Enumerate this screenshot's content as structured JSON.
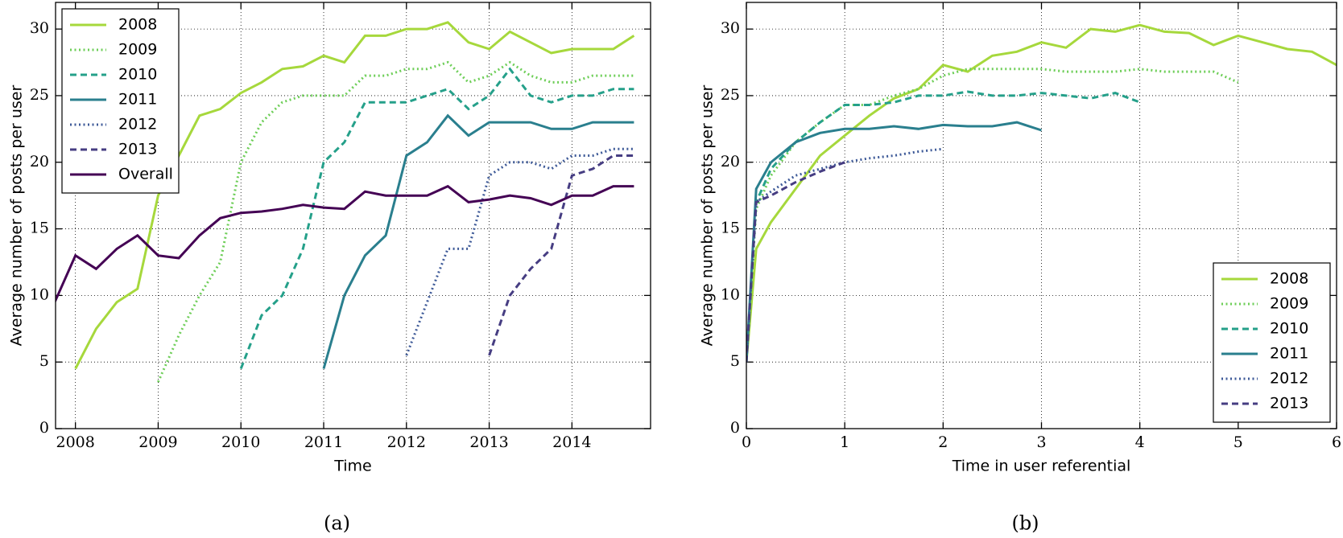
{
  "chart_data": [
    {
      "type": "line",
      "caption": "(a)",
      "x_label": "Time",
      "y_label": "Average number of posts per user",
      "x": [
        2007.75,
        2008.0,
        2008.25,
        2008.5,
        2008.75,
        2009.0,
        2009.25,
        2009.5,
        2009.75,
        2010.0,
        2010.25,
        2010.5,
        2010.75,
        2011.0,
        2011.25,
        2011.5,
        2011.75,
        2012.0,
        2012.25,
        2012.5,
        2012.75,
        2013.0,
        2013.25,
        2013.5,
        2013.75,
        2014.0,
        2014.25,
        2014.5,
        2014.75
      ],
      "series": [
        {
          "name": "2008",
          "color": "#a6d83c",
          "dash": "solid",
          "values": [
            null,
            4.5,
            7.5,
            9.5,
            10.5,
            17.5,
            20.5,
            23.5,
            24,
            25.2,
            26,
            27,
            27.2,
            28,
            27.5,
            29.5,
            29.5,
            30,
            30,
            30.5,
            29,
            28.5,
            29.8,
            29,
            28.2,
            28.5,
            28.5,
            28.5,
            29.5
          ]
        },
        {
          "name": "2009",
          "color": "#6ece58",
          "dash": "dotted",
          "values": [
            null,
            null,
            null,
            null,
            null,
            3.5,
            7,
            10,
            12.5,
            20,
            23,
            24.5,
            25,
            25,
            25,
            26.5,
            26.5,
            27,
            27,
            27.5,
            26,
            26.5,
            27.5,
            26.5,
            26,
            26,
            26.5,
            26.5,
            26.5
          ]
        },
        {
          "name": "2010",
          "color": "#25a08a",
          "dash": "dashed",
          "values": [
            null,
            null,
            null,
            null,
            null,
            null,
            null,
            null,
            null,
            4.5,
            8.5,
            10,
            13.5,
            20,
            21.5,
            24.5,
            24.5,
            24.5,
            25,
            25.5,
            24,
            25,
            27,
            25,
            24.5,
            25,
            25,
            25.5,
            25.5
          ]
        },
        {
          "name": "2011",
          "color": "#2a7f8e",
          "dash": "solid",
          "values": [
            null,
            null,
            null,
            null,
            null,
            null,
            null,
            null,
            null,
            null,
            null,
            null,
            null,
            4.5,
            10,
            13,
            14.5,
            20.5,
            21.5,
            23.5,
            22,
            23,
            23,
            23,
            22.5,
            22.5,
            23,
            23,
            23
          ]
        },
        {
          "name": "2012",
          "color": "#3e5a98",
          "dash": "dotted",
          "values": [
            null,
            null,
            null,
            null,
            null,
            null,
            null,
            null,
            null,
            null,
            null,
            null,
            null,
            null,
            null,
            null,
            null,
            5.5,
            9.5,
            13.5,
            13.5,
            19,
            20,
            20,
            19.5,
            20.5,
            20.5,
            21,
            21
          ]
        },
        {
          "name": "2013",
          "color": "#463d82",
          "dash": "dashed",
          "values": [
            null,
            null,
            null,
            null,
            null,
            null,
            null,
            null,
            null,
            null,
            null,
            null,
            null,
            null,
            null,
            null,
            null,
            null,
            null,
            null,
            null,
            5.5,
            10,
            12,
            13.5,
            19,
            19.5,
            20.5,
            20.5
          ]
        },
        {
          "name": "Overall",
          "color": "#440154",
          "dash": "solid",
          "values": [
            9.5,
            13,
            12,
            13.5,
            14.5,
            13,
            12.8,
            14.5,
            15.8,
            16.2,
            16.3,
            16.5,
            16.8,
            16.6,
            16.5,
            17.8,
            17.5,
            17.5,
            17.5,
            18.2,
            17,
            17.2,
            17.5,
            17.3,
            16.8,
            17.5,
            17.5,
            18.2,
            18.2
          ]
        }
      ],
      "xlim": [
        2007.76,
        2014.95
      ],
      "xticks": [
        2008,
        2009,
        2010,
        2011,
        2012,
        2013,
        2014
      ],
      "ylim": [
        0,
        32
      ],
      "yticks": [
        0,
        5,
        10,
        15,
        20,
        25,
        30
      ],
      "grid": true,
      "legend": "upper left"
    },
    {
      "type": "line",
      "caption": "(b)",
      "x_label": "Time in user referential",
      "y_label": "Average number of posts per user",
      "x": [
        0,
        0.1,
        0.25,
        0.5,
        0.75,
        1,
        1.25,
        1.5,
        1.75,
        2,
        2.25,
        2.5,
        2.75,
        3,
        3.25,
        3.5,
        3.75,
        4,
        4.25,
        4.5,
        4.75,
        5,
        5.25,
        5.5,
        5.75,
        6
      ],
      "series": [
        {
          "name": "2008",
          "color": "#a6d83c",
          "dash": "solid",
          "values": [
            5,
            13.5,
            15.5,
            18,
            20.5,
            22,
            23.5,
            24.8,
            25.5,
            27.3,
            26.8,
            28,
            28.3,
            29,
            28.6,
            30,
            29.8,
            30.3,
            29.8,
            29.7,
            28.8,
            29.5,
            29,
            28.5,
            28.3,
            27.3
          ]
        },
        {
          "name": "2009",
          "color": "#6ece58",
          "dash": "dotted",
          "values": [
            5,
            16.5,
            19,
            21.5,
            23,
            24.3,
            24.3,
            25,
            25.5,
            26.5,
            27,
            27,
            27,
            27,
            26.8,
            26.8,
            26.8,
            27,
            26.8,
            26.8,
            26.8,
            26,
            null,
            null,
            null,
            null
          ]
        },
        {
          "name": "2010",
          "color": "#25a08a",
          "dash": "dashed",
          "values": [
            5,
            17,
            19.5,
            21.5,
            23,
            24.3,
            24.3,
            24.5,
            25,
            25,
            25.3,
            25,
            25,
            25.2,
            25,
            24.8,
            25.2,
            24.5,
            null,
            null,
            null,
            null,
            null,
            null,
            null,
            null
          ]
        },
        {
          "name": "2011",
          "color": "#2a7f8e",
          "dash": "solid",
          "values": [
            5,
            18,
            20,
            21.5,
            22.2,
            22.5,
            22.5,
            22.7,
            22.5,
            22.8,
            22.7,
            22.7,
            23,
            22.4,
            null,
            null,
            null,
            null,
            null,
            null,
            null,
            null,
            null,
            null,
            null,
            null
          ]
        },
        {
          "name": "2012",
          "color": "#3e5a98",
          "dash": "dotted",
          "values": [
            5,
            17,
            17.8,
            19,
            19.5,
            20,
            20.3,
            20.5,
            20.8,
            21,
            null,
            null,
            null,
            null,
            null,
            null,
            null,
            null,
            null,
            null,
            null,
            null,
            null,
            null,
            null,
            null
          ]
        },
        {
          "name": "2013",
          "color": "#463d82",
          "dash": "dashed",
          "values": [
            5,
            17,
            17.5,
            18.5,
            19.3,
            20,
            null,
            null,
            null,
            null,
            null,
            null,
            null,
            null,
            null,
            null,
            null,
            null,
            null,
            null,
            null,
            null,
            null,
            null,
            null,
            null
          ]
        }
      ],
      "xlim": [
        0,
        6
      ],
      "xticks": [
        0,
        1,
        2,
        3,
        4,
        5,
        6
      ],
      "ylim": [
        0,
        32
      ],
      "yticks": [
        0,
        5,
        10,
        15,
        20,
        25,
        30
      ],
      "grid": true,
      "legend": "lower right"
    }
  ]
}
